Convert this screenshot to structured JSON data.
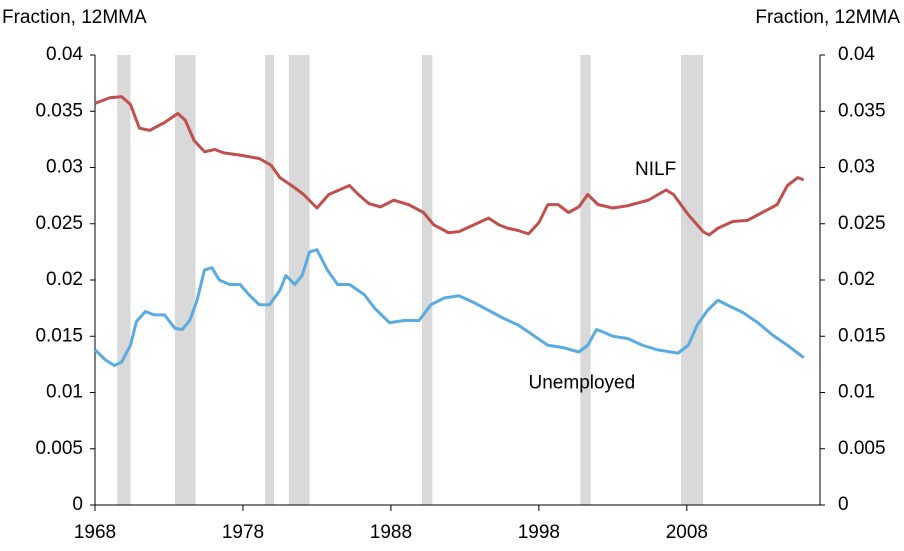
{
  "chart_data": {
    "type": "line",
    "y_label_left": "Fraction, 12MMA",
    "y_label_right": "Fraction, 12MMA",
    "xlim": [
      1968,
      2017
    ],
    "xticks": [
      1968,
      1978,
      1988,
      1998,
      2008
    ],
    "ylim": [
      0,
      0.04
    ],
    "yticks": [
      0,
      0.005,
      0.01,
      0.015,
      0.02,
      0.025,
      0.03,
      0.035,
      0.04
    ],
    "recession_color": "#d9d9d9",
    "recessions": [
      [
        1969.5,
        1970.4
      ],
      [
        1973.4,
        1974.8
      ],
      [
        1979.5,
        1980.1
      ],
      [
        1981.1,
        1982.5
      ],
      [
        1990.1,
        1990.8
      ],
      [
        2000.8,
        2001.5
      ],
      [
        2007.6,
        2009.1
      ]
    ],
    "series": [
      {
        "name": "NILF",
        "color": "#c0504d",
        "x": [
          1968.0,
          1969.0,
          1969.8,
          1970.4,
          1971.0,
          1971.7,
          1972.7,
          1973.6,
          1974.1,
          1974.7,
          1975.4,
          1976.1,
          1976.7,
          1977.8,
          1979.1,
          1979.9,
          1980.5,
          1981.5,
          1982.1,
          1983.0,
          1983.8,
          1984.5,
          1985.2,
          1985.8,
          1986.5,
          1987.3,
          1988.2,
          1989.2,
          1990.2,
          1990.9,
          1991.9,
          1992.6,
          1993.6,
          1994.6,
          1995.3,
          1995.9,
          1996.6,
          1997.3,
          1998.0,
          1998.6,
          1999.3,
          2000.0,
          2000.7,
          2001.3,
          2002.0,
          2003.0,
          2004.0,
          2005.4,
          2006.6,
          2007.1,
          2008.1,
          2009.1,
          2009.5,
          2010.1,
          2011.1,
          2012.1,
          2013.1,
          2014.1,
          2014.8,
          2015.5,
          2015.9
        ],
        "values": [
          0.0357,
          0.0362,
          0.0363,
          0.0356,
          0.0335,
          0.0333,
          0.034,
          0.0348,
          0.0342,
          0.0324,
          0.0314,
          0.0316,
          0.0313,
          0.0311,
          0.0308,
          0.0302,
          0.0291,
          0.0282,
          0.0276,
          0.0264,
          0.0276,
          0.028,
          0.0284,
          0.0276,
          0.0268,
          0.0265,
          0.0271,
          0.0267,
          0.026,
          0.0249,
          0.0242,
          0.0243,
          0.0249,
          0.0255,
          0.0249,
          0.0246,
          0.0244,
          0.0241,
          0.0251,
          0.0267,
          0.0267,
          0.026,
          0.0265,
          0.0276,
          0.0267,
          0.0264,
          0.0266,
          0.0271,
          0.028,
          0.0276,
          0.0258,
          0.0243,
          0.024,
          0.0246,
          0.0252,
          0.0253,
          0.026,
          0.0267,
          0.0284,
          0.0291,
          0.0289
        ]
      },
      {
        "name": "Unemployed",
        "color": "#5aace0",
        "x": [
          1968.0,
          1968.7,
          1969.3,
          1969.8,
          1970.4,
          1970.8,
          1971.4,
          1972.0,
          1972.7,
          1973.4,
          1973.9,
          1974.4,
          1974.9,
          1975.4,
          1975.9,
          1976.4,
          1977.1,
          1977.8,
          1978.4,
          1979.1,
          1979.8,
          1980.5,
          1980.9,
          1981.5,
          1982.0,
          1982.5,
          1983.0,
          1983.7,
          1984.4,
          1985.2,
          1986.2,
          1986.9,
          1987.9,
          1988.9,
          1989.9,
          1990.7,
          1991.6,
          1992.6,
          1993.6,
          1994.6,
          1995.6,
          1996.6,
          1997.6,
          1998.6,
          1999.6,
          2000.7,
          2001.3,
          2001.9,
          2002.3,
          2003.0,
          2004.0,
          2005.0,
          2006.0,
          2007.4,
          2008.1,
          2008.7,
          2009.4,
          2010.1,
          2010.7,
          2011.8,
          2012.8,
          2013.8,
          2014.8,
          2015.9
        ],
        "values": [
          0.0138,
          0.0129,
          0.0124,
          0.0127,
          0.0142,
          0.0163,
          0.0172,
          0.0169,
          0.0169,
          0.0157,
          0.0156,
          0.0164,
          0.0182,
          0.0209,
          0.0211,
          0.02,
          0.0196,
          0.0196,
          0.0187,
          0.0178,
          0.0178,
          0.0191,
          0.0204,
          0.0196,
          0.0204,
          0.0225,
          0.0227,
          0.0209,
          0.0196,
          0.0196,
          0.0187,
          0.0175,
          0.0162,
          0.0164,
          0.0164,
          0.0178,
          0.0184,
          0.0186,
          0.018,
          0.0173,
          0.0166,
          0.016,
          0.0151,
          0.0142,
          0.014,
          0.0136,
          0.0142,
          0.0156,
          0.0154,
          0.015,
          0.0148,
          0.0142,
          0.0138,
          0.0135,
          0.0142,
          0.016,
          0.0173,
          0.0182,
          0.0178,
          0.0171,
          0.0162,
          0.0151,
          0.0142,
          0.0131
        ]
      }
    ],
    "annotations": [
      {
        "text": "NILF",
        "x": 2004.5,
        "y": 0.0298
      },
      {
        "text": "Unemployed",
        "x": 1997.3,
        "y": 0.0108
      }
    ]
  }
}
